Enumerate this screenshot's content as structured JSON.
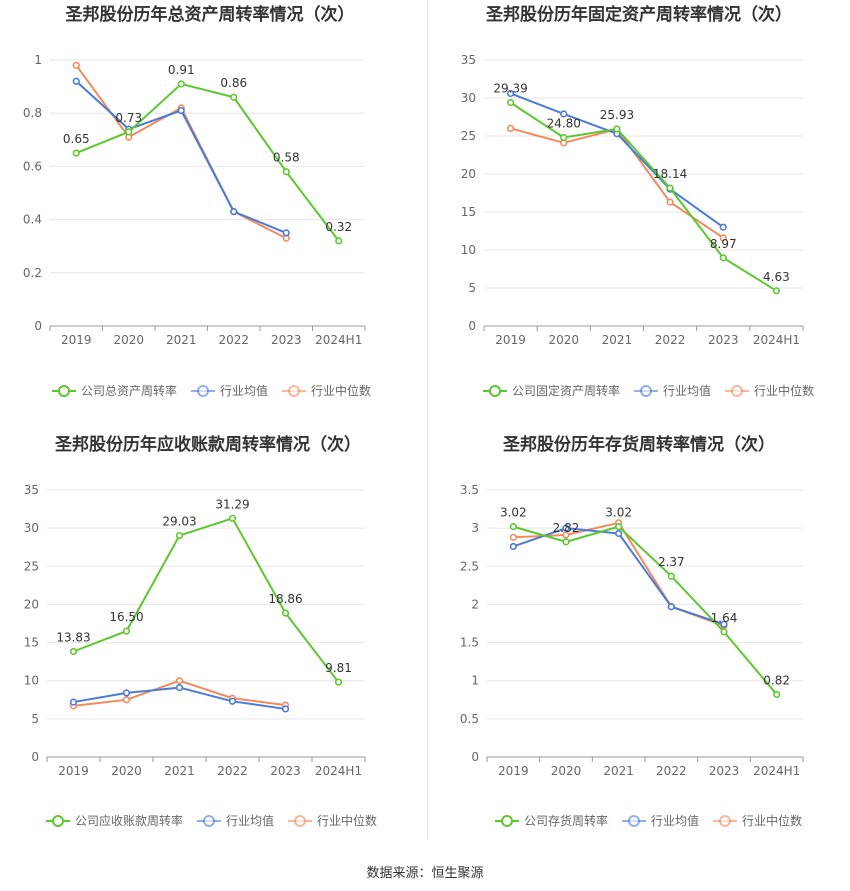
{
  "footer": {
    "source": "数据来源：恒生聚源"
  },
  "colors": {
    "company": "#5bc82e",
    "avg": "#4a7bd8",
    "median": "#f28a5c"
  },
  "chart_data": [
    {
      "type": "line",
      "title": "圣邦股份历年总资产周转率情况（次）",
      "categories": [
        "2019",
        "2020",
        "2021",
        "2022",
        "2023",
        "2024H1"
      ],
      "ylim": [
        0,
        1
      ],
      "yticks": [
        0,
        0.2,
        0.4,
        0.6,
        0.8,
        1
      ],
      "ytick_labels": [
        "0",
        "0.2",
        "0.4",
        "0.6",
        "0.8",
        "1"
      ],
      "series": [
        {
          "name": "公司总资产周转率",
          "color": "#5bc82e",
          "values": [
            0.65,
            0.73,
            0.91,
            0.86,
            0.58,
            0.32
          ],
          "labels": [
            "0.65",
            "0.73",
            "0.91",
            "0.86",
            "0.58",
            "0.32"
          ]
        },
        {
          "name": "行业均值",
          "color": "#4a7bd8",
          "values": [
            0.92,
            0.74,
            0.81,
            0.43,
            0.35,
            null
          ]
        },
        {
          "name": "行业中位数",
          "color": "#f28a5c",
          "values": [
            0.98,
            0.71,
            0.82,
            0.43,
            0.33,
            null
          ]
        }
      ]
    },
    {
      "type": "line",
      "title": "圣邦股份历年固定资产周转率情况（次）",
      "categories": [
        "2019",
        "2020",
        "2021",
        "2022",
        "2023",
        "2024H1"
      ],
      "ylim": [
        0,
        35
      ],
      "yticks": [
        0,
        5,
        10,
        15,
        20,
        25,
        30,
        35
      ],
      "ytick_labels": [
        "0",
        "5",
        "10",
        "15",
        "20",
        "25",
        "30",
        "35"
      ],
      "series": [
        {
          "name": "公司固定资产周转率",
          "color": "#5bc82e",
          "values": [
            29.39,
            24.8,
            25.93,
            18.14,
            8.97,
            4.63
          ],
          "labels": [
            "29.39",
            "24.80",
            "25.93",
            "18.14",
            "8.97",
            "4.63"
          ]
        },
        {
          "name": "行业均值",
          "color": "#4a7bd8",
          "values": [
            30.6,
            27.9,
            25.3,
            18.0,
            13.0,
            null
          ]
        },
        {
          "name": "行业中位数",
          "color": "#f28a5c",
          "values": [
            26.0,
            24.1,
            25.9,
            16.3,
            11.6,
            null
          ]
        }
      ]
    },
    {
      "type": "line",
      "title": "圣邦股份历年应收账款周转率情况（次）",
      "categories": [
        "2019",
        "2020",
        "2021",
        "2022",
        "2023",
        "2024H1"
      ],
      "ylim": [
        0,
        35
      ],
      "yticks": [
        0,
        5,
        10,
        15,
        20,
        25,
        30,
        35
      ],
      "ytick_labels": [
        "0",
        "5",
        "10",
        "15",
        "20",
        "25",
        "30",
        "35"
      ],
      "series": [
        {
          "name": "公司应收账款周转率",
          "color": "#5bc82e",
          "values": [
            13.83,
            16.5,
            29.03,
            31.29,
            18.86,
            9.81
          ],
          "labels": [
            "13.83",
            "16.50",
            "29.03",
            "31.29",
            "18.86",
            "9.81"
          ]
        },
        {
          "name": "行业均值",
          "color": "#4a7bd8",
          "values": [
            7.2,
            8.4,
            9.1,
            7.3,
            6.3,
            null
          ]
        },
        {
          "name": "行业中位数",
          "color": "#f28a5c",
          "values": [
            6.7,
            7.5,
            10.0,
            7.7,
            6.8,
            null
          ]
        }
      ]
    },
    {
      "type": "line",
      "title": "圣邦股份历年存货周转率情况（次）",
      "categories": [
        "2019",
        "2020",
        "2021",
        "2022",
        "2023",
        "2024H1"
      ],
      "ylim": [
        0,
        3.5
      ],
      "yticks": [
        0,
        0.5,
        1,
        1.5,
        2,
        2.5,
        3,
        3.5
      ],
      "ytick_labels": [
        "0",
        "0.5",
        "1",
        "1.5",
        "2",
        "2.5",
        "3",
        "3.5"
      ],
      "series": [
        {
          "name": "公司存货周转率",
          "color": "#5bc82e",
          "values": [
            3.02,
            2.82,
            3.02,
            2.37,
            1.64,
            0.82
          ],
          "labels": [
            "3.02",
            "2.82",
            "3.02",
            "2.37",
            "1.64",
            "0.82"
          ]
        },
        {
          "name": "行业均值",
          "color": "#4a7bd8",
          "values": [
            2.76,
            3.0,
            2.93,
            1.97,
            1.74,
            null
          ]
        },
        {
          "name": "行业中位数",
          "color": "#f28a5c",
          "values": [
            2.88,
            2.91,
            3.07,
            1.97,
            1.72,
            null
          ]
        }
      ]
    }
  ]
}
